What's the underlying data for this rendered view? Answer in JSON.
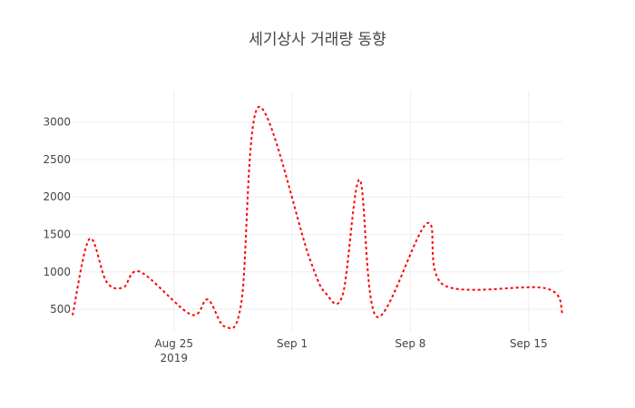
{
  "chart_data": {
    "type": "line",
    "title": "세기상사 거래량 동향",
    "xlabel": "",
    "ylabel": "",
    "x_ticks": [
      {
        "date": "2019-08-25",
        "label": "Aug 25",
        "sublabel": "2019"
      },
      {
        "date": "2019-09-01",
        "label": "Sep 1",
        "sublabel": ""
      },
      {
        "date": "2019-09-08",
        "label": "Sep 8",
        "sublabel": ""
      },
      {
        "date": "2019-09-15",
        "label": "Sep 15",
        "sublabel": ""
      }
    ],
    "y_ticks": [
      500,
      1000,
      1500,
      2000,
      2500,
      3000
    ],
    "xlim": [
      "2019-08-19",
      "2019-09-17"
    ],
    "ylim": [
      210,
      3420
    ],
    "grid": true,
    "legend": "none",
    "series": [
      {
        "color": "#ff0000",
        "line_style": "dotted",
        "smoothing": "spline",
        "x": [
          "2019-08-19",
          "2019-08-20",
          "2019-08-21",
          "2019-08-22",
          "2019-08-23",
          "2019-08-26",
          "2019-08-27",
          "2019-08-28",
          "2019-08-29",
          "2019-08-30",
          "2019-09-02",
          "2019-09-03",
          "2019-09-04",
          "2019-09-05",
          "2019-09-06",
          "2019-09-09",
          "2019-09-10",
          "2019-09-16",
          "2019-09-17"
        ],
        "y": [
          420,
          1440,
          870,
          790,
          1000,
          430,
          630,
          270,
          600,
          3200,
          1200,
          710,
          700,
          2230,
          400,
          1650,
          820,
          780,
          450
        ]
      }
    ]
  }
}
